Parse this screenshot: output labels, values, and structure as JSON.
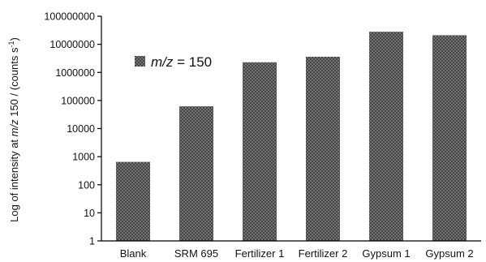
{
  "chart_data": {
    "type": "bar",
    "yscale": "log",
    "ylim": [
      1,
      100000000
    ],
    "yticks": [
      "1",
      "10",
      "100",
      "1000",
      "10000",
      "100000",
      "1000000",
      "10000000",
      "100000000"
    ],
    "ylabel_parts": {
      "pre": "Log of intensity  at ",
      "italic": "m/z",
      "post": " 150 / (counts s",
      "sup": "-1",
      "end": ")"
    },
    "categories": [
      "Blank",
      "SRM 695",
      "Fertilizer 1",
      "Fertilizer 2",
      "Gypsum 1",
      "Gypsum 2"
    ],
    "series": [
      {
        "legend_italic": "m/z",
        "legend_rest": " = 150",
        "values": [
          650,
          62000,
          2300000,
          3600000,
          28000000,
          21000000
        ]
      }
    ],
    "colors": {
      "bar_fill": "#444444",
      "bar_dot": "#b0b0b0"
    }
  }
}
